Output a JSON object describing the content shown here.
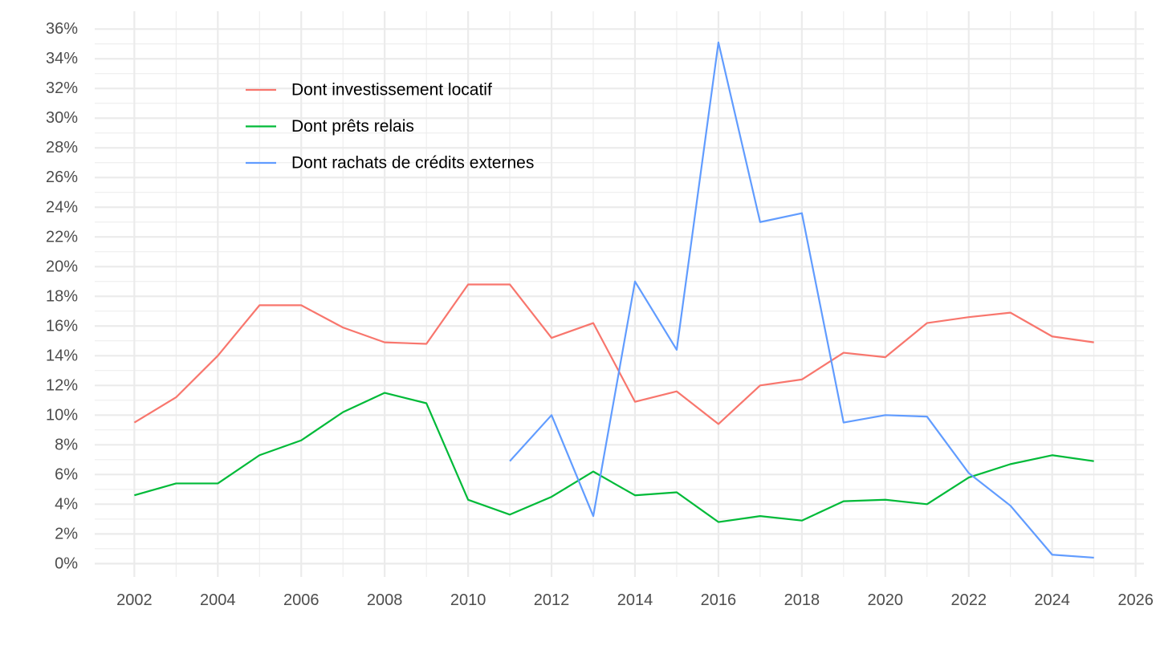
{
  "chart_data": {
    "type": "line",
    "title": "",
    "xlabel": "",
    "ylabel": "",
    "x": [
      2002,
      2003,
      2004,
      2005,
      2006,
      2007,
      2008,
      2009,
      2010,
      2011,
      2012,
      2013,
      2014,
      2015,
      2016,
      2017,
      2018,
      2019,
      2020,
      2021,
      2022,
      2023,
      2024,
      2025
    ],
    "xlim": [
      2001.05,
      2026.2
    ],
    "ylim": [
      -0.9,
      37.2
    ],
    "x_ticks": [
      2002,
      2004,
      2006,
      2008,
      2010,
      2012,
      2014,
      2016,
      2018,
      2020,
      2022,
      2024,
      2026
    ],
    "x_tick_labels": [
      "2002",
      "2004",
      "2006",
      "2008",
      "2010",
      "2012",
      "2014",
      "2016",
      "2018",
      "2020",
      "2022",
      "2024",
      "2026"
    ],
    "y_ticks": [
      0,
      2,
      4,
      6,
      8,
      10,
      12,
      14,
      16,
      18,
      20,
      22,
      24,
      26,
      28,
      30,
      32,
      34,
      36
    ],
    "y_tick_labels": [
      "0%",
      "2%",
      "4%",
      "6%",
      "8%",
      "10%",
      "12%",
      "14%",
      "16%",
      "18%",
      "20%",
      "22%",
      "24%",
      "26%",
      "28%",
      "30%",
      "32%",
      "34%",
      "36%"
    ],
    "grid": true,
    "legend_position": "top-left",
    "series": [
      {
        "name": "Dont investissement locatif",
        "color": "#F8766D",
        "values": [
          9.5,
          11.2,
          14.0,
          17.4,
          17.4,
          15.9,
          14.9,
          14.8,
          18.8,
          18.8,
          15.2,
          16.2,
          10.9,
          11.6,
          9.4,
          12.0,
          12.4,
          14.2,
          13.9,
          16.2,
          16.6,
          16.9,
          15.3,
          14.9
        ]
      },
      {
        "name": "Dont prêts relais",
        "color": "#00BA38",
        "values": [
          4.6,
          5.4,
          5.4,
          7.3,
          8.3,
          10.2,
          11.5,
          10.8,
          4.3,
          3.3,
          4.5,
          6.2,
          4.6,
          4.8,
          2.8,
          3.2,
          2.9,
          4.2,
          4.3,
          4.0,
          5.8,
          6.7,
          7.3,
          6.9
        ]
      },
      {
        "name": "Dont rachats de crédits externes",
        "color": "#619CFF",
        "values": [
          null,
          null,
          null,
          null,
          null,
          null,
          null,
          null,
          null,
          6.9,
          10.0,
          3.2,
          19.0,
          14.4,
          35.1,
          23.0,
          23.6,
          9.5,
          10.0,
          9.9,
          6.1,
          3.9,
          0.6,
          0.4
        ]
      }
    ]
  }
}
